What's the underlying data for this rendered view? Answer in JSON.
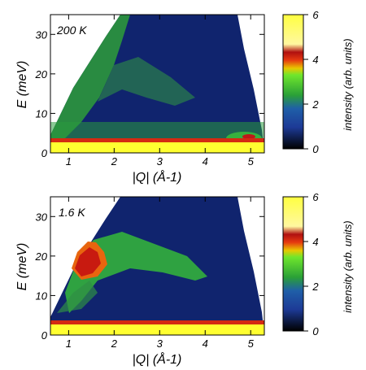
{
  "figure": {
    "panels": [
      {
        "temperature_label": "200 K",
        "chart_data": {
          "type": "heatmap",
          "title": "",
          "xlabel": "|Q| (Å-1)",
          "ylabel": "E (meV)",
          "xlim": [
            0.6,
            5.3
          ],
          "ylim": [
            0,
            35
          ],
          "x_ticks": [
            1,
            2,
            3,
            4,
            5
          ],
          "y_ticks": [
            0,
            10,
            20,
            30
          ],
          "colorbar": {
            "label": "intensity (arb. units)",
            "range": [
              0,
              6
            ],
            "ticks": [
              0,
              2,
              4,
              6
            ],
            "colormap": [
              "#000000",
              "#1d3a96",
              "#2aa037",
              "#6fe62c",
              "#e8c800",
              "#e63a10",
              "#b01010",
              "#fff8a0",
              "#ffff40"
            ]
          },
          "features": [
            {
              "name": "elastic_line",
              "E_center": 2.5,
              "E_width": 1.0,
              "intensity": 6
            },
            {
              "name": "diffuse_band",
              "path": [
                [
                  1.1,
                  10
                ],
                [
                  1.6,
                  20
                ],
                [
                  2.2,
                  24
                ],
                [
                  3.0,
                  20
                ]
              ],
              "intensity": 2.5
            },
            {
              "name": "low_energy_background",
              "E_range": [
                3,
                10
              ],
              "intensity": 1.8
            },
            {
              "name": "high_Q_phonon",
              "Q_range": [
                4.2,
                5.1
              ],
              "E_range": [
                3,
                8
              ],
              "intensity": 3.5
            }
          ]
        }
      },
      {
        "temperature_label": "1.6 K",
        "chart_data": {
          "type": "heatmap",
          "title": "",
          "xlabel": "|Q| (Å-1)",
          "ylabel": "E (meV)",
          "xlim": [
            0.6,
            5.3
          ],
          "ylim": [
            0,
            35
          ],
          "x_ticks": [
            1,
            2,
            3,
            4,
            5
          ],
          "y_ticks": [
            0,
            10,
            20,
            30
          ],
          "colorbar": {
            "label": "intensity (arb. units)",
            "range": [
              0,
              6
            ],
            "ticks": [
              0,
              2,
              4,
              6
            ],
            "colormap": [
              "#000000",
              "#1d3a96",
              "#2aa037",
              "#6fe62c",
              "#e8c800",
              "#e63a10",
              "#b01010",
              "#fff8a0",
              "#ffff40"
            ]
          },
          "features": [
            {
              "name": "elastic_line",
              "E_center": 2.5,
              "E_width": 1.0,
              "intensity": 6
            },
            {
              "name": "magnetic_excitation",
              "Q_center": 1.3,
              "E_center": 17,
              "intensity": 4
            },
            {
              "name": "excitation_band",
              "path": [
                [
                  0.9,
                  10
                ],
                [
                  1.2,
                  16
                ],
                [
                  2.0,
                  20
                ],
                [
                  3.0,
                  16
                ]
              ],
              "intensity": 2.5
            }
          ]
        }
      }
    ]
  }
}
